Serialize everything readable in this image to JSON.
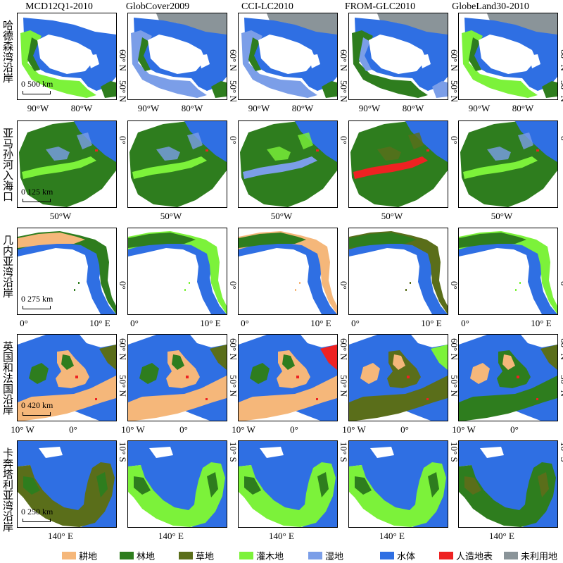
{
  "columns": [
    "MCD12Q1-2010",
    "GlobCover2009",
    "CCI-LC2010",
    "FROM-GLC2010",
    "GlobeLand30-2010"
  ],
  "rows": [
    {
      "label": "哈德森湾沿岸",
      "scale": "0 500 km",
      "x_ticks": [
        "90°W",
        "80°W"
      ],
      "y_ticks": [
        "60° N",
        "50° N"
      ]
    },
    {
      "label": "亚马孙河入海口",
      "scale": "0 125 km",
      "x_ticks": [
        "50°W"
      ],
      "y_ticks": [
        "0°"
      ]
    },
    {
      "label": "几内亚湾沿岸",
      "scale": "0 275 km",
      "x_ticks": [
        "0°",
        "10° E"
      ],
      "y_ticks": [
        "0°"
      ]
    },
    {
      "label": "英国和法国沿岸",
      "scale": "0 420 km",
      "x_ticks": [
        "10° W",
        "0°"
      ],
      "y_ticks": [
        "60° N",
        "50° N"
      ]
    },
    {
      "label": "卡奔塔利亚湾沿岸",
      "scale": "0 250 km",
      "x_ticks": [
        "140° E"
      ],
      "y_ticks": [
        "10° S"
      ]
    }
  ],
  "legend": [
    {
      "label": "耕地",
      "color": "#f5b77a"
    },
    {
      "label": "林地",
      "color": "#2e7d1e"
    },
    {
      "label": "草地",
      "color": "#5a6e1a"
    },
    {
      "label": "灌木地",
      "color": "#7cf23a"
    },
    {
      "label": "湿地",
      "color": "#7b9ee8"
    },
    {
      "label": "水体",
      "color": "#2f6fe3"
    },
    {
      "label": "人造地表",
      "color": "#ee2222"
    },
    {
      "label": "未利用地",
      "color": "#8a9499"
    }
  ]
}
